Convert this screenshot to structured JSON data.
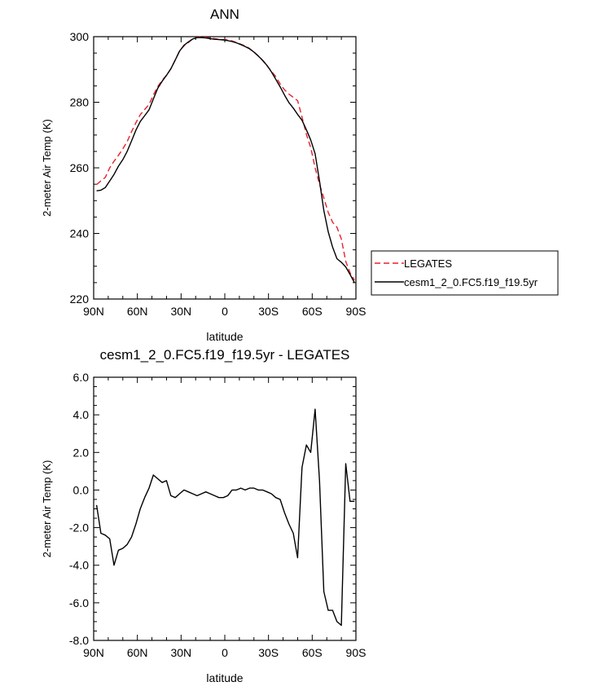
{
  "chart_data": [
    {
      "type": "line",
      "title": "ANN",
      "xlabel": "latitude",
      "ylabel": "2-meter Air Temp (K)",
      "xlim": [
        90,
        -90
      ],
      "ylim": [
        220,
        300
      ],
      "xticks": [
        90,
        60,
        30,
        0,
        -30,
        -60,
        -90
      ],
      "xtick_labels": [
        "90N",
        "60N",
        "30N",
        "0",
        "30S",
        "60S",
        "90S"
      ],
      "yticks": [
        220,
        240,
        260,
        280,
        300
      ],
      "ytick_labels": [
        "220",
        "240",
        "260",
        "280",
        "300"
      ],
      "legend": {
        "placement": "right"
      },
      "series": [
        {
          "name": "LEGATES",
          "style": "dashed",
          "color": "#e8202a",
          "x": [
            88,
            85,
            82,
            79,
            76,
            73,
            70,
            67,
            64,
            61,
            58,
            55,
            52,
            49,
            46,
            43,
            40,
            37,
            34,
            31,
            28,
            25,
            22,
            19,
            16,
            13,
            10,
            7,
            4,
            1,
            -2,
            -5,
            -8,
            -11,
            -14,
            -17,
            -20,
            -23,
            -26,
            -29,
            -32,
            -35,
            -38,
            -41,
            -44,
            -47,
            -50,
            -53,
            -56,
            -59,
            -62,
            -65,
            -68,
            -71,
            -74,
            -77,
            -80,
            -83,
            -86,
            -89
          ],
          "y": [
            254.9,
            256.0,
            257.1,
            260.0,
            262.0,
            263.8,
            265.8,
            268.0,
            271.0,
            273.8,
            276.2,
            277.8,
            279.3,
            282.2,
            284.8,
            286.7,
            288.2,
            290.2,
            292.9,
            295.7,
            297.2,
            298.2,
            299.3,
            299.8,
            299.9,
            299.8,
            299.6,
            299.4,
            299.2,
            299.1,
            299.0,
            298.7,
            298.2,
            297.7,
            297.2,
            296.4,
            295.3,
            294.1,
            292.7,
            291.1,
            289.5,
            287.8,
            285.6,
            283.8,
            282.5,
            281.5,
            280.5,
            275.5,
            270.2,
            266.2,
            260.0,
            255.0,
            250.8,
            246.4,
            243.4,
            241.9,
            238.3,
            231.5,
            228.0,
            225.8
          ]
        },
        {
          "name": "cesm1_2_0.FC5.f19_f19.5yr",
          "style": "solid",
          "color": "#000000",
          "x": [
            88,
            85,
            82,
            79,
            76,
            73,
            70,
            67,
            64,
            61,
            58,
            55,
            52,
            49,
            46,
            43,
            40,
            37,
            34,
            31,
            28,
            25,
            22,
            19,
            16,
            13,
            10,
            7,
            4,
            1,
            -2,
            -5,
            -8,
            -11,
            -14,
            -17,
            -20,
            -23,
            -26,
            -29,
            -32,
            -35,
            -38,
            -41,
            -44,
            -47,
            -50,
            -53,
            -56,
            -59,
            -62,
            -65,
            -68,
            -71,
            -74,
            -77,
            -80,
            -83,
            -86,
            -89
          ],
          "y": [
            253.0,
            253.2,
            254.0,
            256.0,
            258.0,
            260.5,
            262.5,
            265.0,
            268.2,
            271.5,
            274.1,
            275.9,
            277.7,
            281.0,
            284.3,
            286.4,
            288.2,
            290.2,
            292.9,
            295.6,
            297.4,
            298.4,
            299.3,
            299.7,
            299.7,
            299.6,
            299.4,
            299.2,
            299.1,
            299.0,
            298.8,
            298.5,
            298.1,
            297.6,
            297.0,
            296.3,
            295.3,
            294.1,
            292.8,
            291.2,
            289.3,
            287.0,
            284.7,
            282.2,
            279.9,
            278.2,
            276.3,
            274.5,
            271.6,
            268.5,
            264.3,
            256.0,
            247.0,
            240.5,
            235.8,
            232.3,
            231.2,
            229.8,
            227.5,
            225.0
          ]
        }
      ]
    },
    {
      "type": "line",
      "title": "cesm1_2_0.FC5.f19_f19.5yr - LEGATES",
      "xlabel": "latitude",
      "ylabel": "2-meter Air Temp (K)",
      "xlim": [
        90,
        -90
      ],
      "ylim": [
        -8,
        6
      ],
      "xticks": [
        90,
        60,
        30,
        0,
        -30,
        -60,
        -90
      ],
      "xtick_labels": [
        "90N",
        "60N",
        "30N",
        "0",
        "30S",
        "60S",
        "90S"
      ],
      "yticks": [
        -8,
        -6,
        -4,
        -2,
        0,
        2,
        4,
        6
      ],
      "ytick_labels": [
        "-8.0",
        "-6.0",
        "-4.0",
        "-2.0",
        "0.0",
        "2.0",
        "4.0",
        "6.0"
      ],
      "series": [
        {
          "style": "solid",
          "color": "#000000",
          "x": [
            88,
            85,
            82,
            79,
            76,
            73,
            70,
            67,
            64,
            61,
            58,
            55,
            52,
            49,
            46,
            43,
            40,
            37,
            34,
            31,
            28,
            25,
            22,
            19,
            16,
            13,
            10,
            7,
            4,
            1,
            -2,
            -5,
            -8,
            -11,
            -14,
            -17,
            -20,
            -23,
            -26,
            -29,
            -32,
            -35,
            -38,
            -41,
            -44,
            -47,
            -50,
            -53,
            -56,
            -59,
            -62,
            -65,
            -68,
            -71,
            -74,
            -77,
            -80,
            -83,
            -86,
            -89
          ],
          "y": [
            -0.8,
            -2.3,
            -2.4,
            -2.6,
            -4.0,
            -3.2,
            -3.1,
            -2.9,
            -2.5,
            -1.8,
            -1.0,
            -0.4,
            0.1,
            0.8,
            0.6,
            0.4,
            0.5,
            -0.3,
            -0.4,
            -0.2,
            0.0,
            -0.1,
            -0.2,
            -0.3,
            -0.2,
            -0.1,
            -0.2,
            -0.3,
            -0.4,
            -0.4,
            -0.3,
            0.0,
            0.0,
            0.1,
            0.0,
            0.1,
            0.1,
            0.0,
            0.0,
            -0.1,
            -0.2,
            -0.4,
            -0.5,
            -1.2,
            -1.8,
            -2.3,
            -3.6,
            1.2,
            2.4,
            2.0,
            4.3,
            0.5,
            -5.4,
            -6.4,
            -6.4,
            -7.0,
            -7.2,
            1.4,
            -0.6,
            -0.6
          ]
        }
      ]
    }
  ]
}
